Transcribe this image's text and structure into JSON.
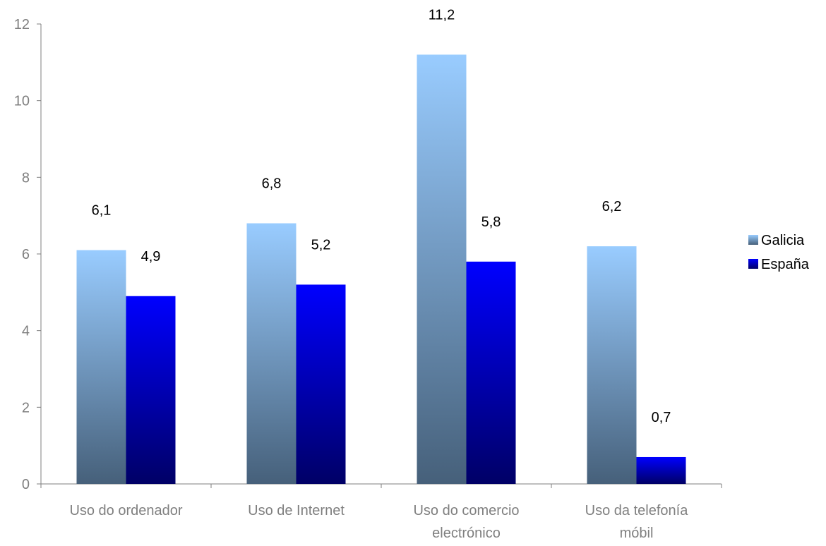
{
  "chart_data": {
    "type": "bar",
    "categories": [
      [
        "Uso do ordenador"
      ],
      [
        "Uso de Internet"
      ],
      [
        "Uso do comercio",
        "electrónico"
      ],
      [
        "Uso da telefonía",
        "móbil"
      ]
    ],
    "series": [
      {
        "name": "Galicia",
        "values": [
          6.1,
          6.8,
          11.2,
          6.2
        ],
        "labels": [
          "6,1",
          "6,8",
          "11,2",
          "6,2"
        ],
        "color_top": "#99ccff",
        "color_bottom": "#46607a"
      },
      {
        "name": "España",
        "values": [
          4.9,
          5.2,
          5.8,
          0.7
        ],
        "labels": [
          "4,9",
          "5,2",
          "5,8",
          "0,7"
        ],
        "color_top": "#0000ff",
        "color_bottom": "#000066"
      }
    ],
    "yticks": [
      0,
      2,
      4,
      6,
      8,
      10,
      12
    ],
    "ylim": [
      0,
      12
    ],
    "grid": false,
    "legend_position": "right"
  }
}
